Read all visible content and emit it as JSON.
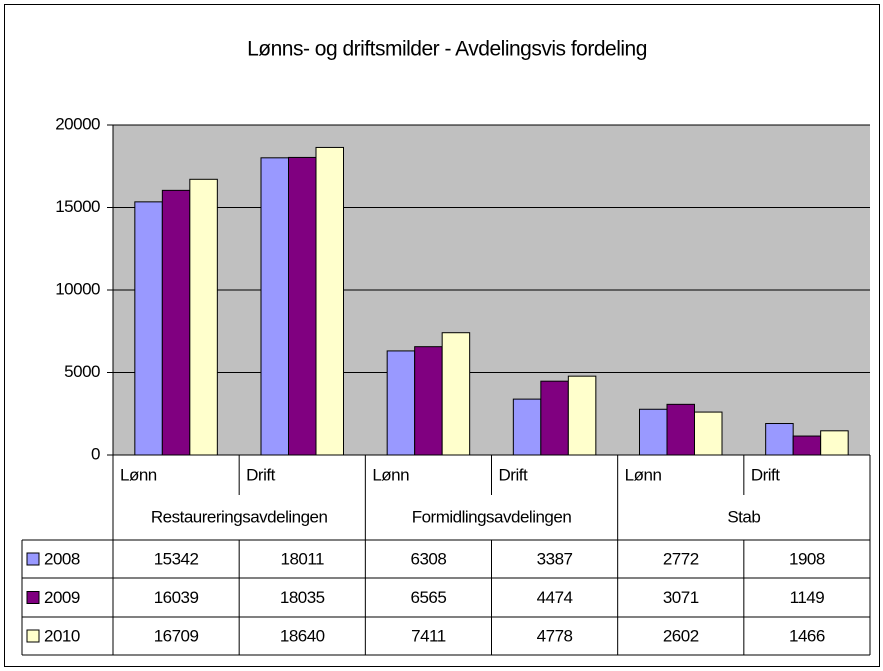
{
  "chart_data": {
    "type": "bar",
    "title": "Lønns- og driftsmilder - Avdelingsvis fordeling",
    "categories": [
      "Lønn",
      "Drift",
      "Lønn",
      "Drift",
      "Lønn",
      "Drift"
    ],
    "groups": [
      "Restaureringsavdelingen",
      "Formidlingsavdelingen",
      "Stab"
    ],
    "series": [
      {
        "name": "2008",
        "color": "#9999ff",
        "values": [
          15342,
          18011,
          6308,
          3387,
          2772,
          1908
        ]
      },
      {
        "name": "2009",
        "color": "#800080",
        "values": [
          16039,
          18035,
          6565,
          4474,
          3071,
          1149
        ]
      },
      {
        "name": "2010",
        "color": "#ffffcc",
        "values": [
          16709,
          18640,
          7411,
          4778,
          2602,
          1466
        ]
      }
    ],
    "ylim": [
      0,
      20000
    ],
    "yticks": [
      0,
      5000,
      10000,
      15000,
      20000
    ],
    "grid": true
  }
}
